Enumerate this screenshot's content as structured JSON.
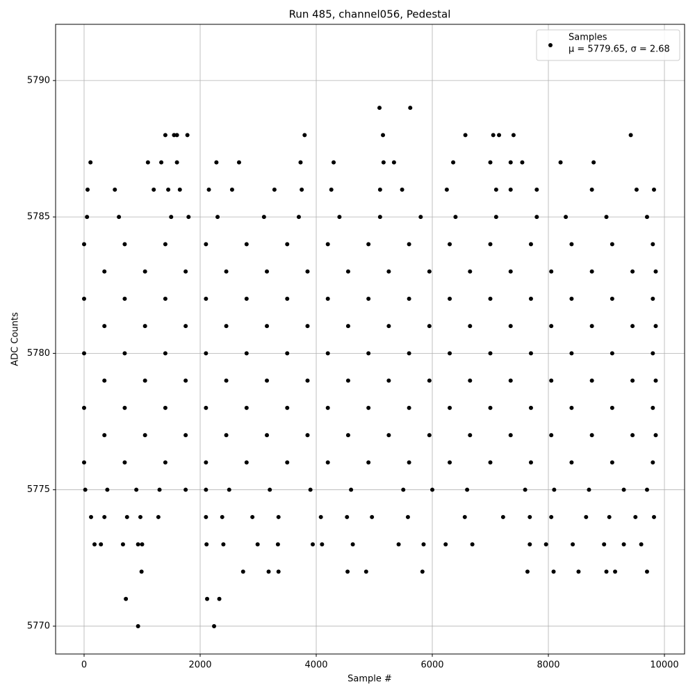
{
  "chart_data": {
    "type": "scatter",
    "title": "Run 485, channel056, Pedestal",
    "x_label": "Sample #",
    "y_label": "ADC Counts",
    "annotation": "μ = 5779.65, σ = 2.68",
    "xlim": [
      -491,
      10347
    ],
    "ylim": [
      5768.98,
      5792.06
    ],
    "xticks": [
      0,
      2000,
      4000,
      6000,
      8000,
      10000
    ],
    "yticks": [
      5770,
      5775,
      5780,
      5785,
      5790
    ],
    "grid": true,
    "legend": "upper right",
    "series": [
      {
        "name": "Samples",
        "color": "#000000",
        "x": [
          0,
          700,
          1400,
          2100,
          2800,
          3500,
          4200,
          4900,
          5600,
          6300,
          7000,
          7700,
          8400,
          9100,
          9800,
          0,
          700,
          1400,
          2100,
          2800,
          3500,
          4200,
          4900,
          5600,
          6300,
          7000,
          7700,
          8400,
          9100,
          9800,
          0,
          700,
          1400,
          2100,
          2800,
          3500,
          4200,
          4900,
          5600,
          6300,
          7000,
          7700,
          8400,
          9100,
          9800,
          0,
          700,
          1400,
          2100,
          2800,
          3500,
          4200,
          4900,
          5600,
          6300,
          7000,
          7700,
          8400,
          9100,
          9800,
          0,
          700,
          1400,
          2100,
          2800,
          3500,
          4200,
          4900,
          5600,
          6300,
          7000,
          7700,
          8400,
          9100,
          9800,
          350,
          1050,
          1750,
          2450,
          3150,
          3850,
          4550,
          5250,
          5950,
          6650,
          7350,
          8050,
          8750,
          9450,
          9850,
          350,
          1050,
          1750,
          2450,
          3150,
          3850,
          4550,
          5250,
          5950,
          6650,
          7350,
          8050,
          8750,
          9450,
          9850,
          350,
          1050,
          1750,
          2450,
          3150,
          3850,
          4550,
          5250,
          5950,
          6650,
          7350,
          8050,
          8750,
          9450,
          9850,
          350,
          1050,
          1750,
          2450,
          3150,
          3850,
          4550,
          5250,
          5950,
          6650,
          7350,
          8050,
          8750,
          9450,
          9850,
          50,
          600,
          1500,
          1800,
          2300,
          3100,
          3700,
          4400,
          5100,
          5800,
          6400,
          7100,
          7800,
          8300,
          9000,
          9700,
          20,
          400,
          900,
          1300,
          1750,
          2100,
          2500,
          3200,
          3900,
          4600,
          5500,
          6000,
          6600,
          7600,
          8100,
          8700,
          9300,
          9700,
          60,
          530,
          1200,
          1450,
          1650,
          2150,
          2550,
          3280,
          3750,
          4260,
          5100,
          5480,
          6250,
          7100,
          7350,
          7800,
          8750,
          9520,
          9820,
          120,
          350,
          740,
          970,
          1280,
          2100,
          2380,
          2900,
          3350,
          4080,
          4530,
          4960,
          5580,
          6560,
          7220,
          7680,
          8050,
          8650,
          9050,
          9500,
          9820,
          110,
          1100,
          1330,
          1600,
          2280,
          2670,
          3730,
          4300,
          5160,
          5340,
          6360,
          7000,
          7350,
          7550,
          8210,
          8780,
          180,
          290,
          670,
          930,
          1000,
          2110,
          2400,
          2990,
          3340,
          3940,
          4100,
          4630,
          5420,
          5850,
          6230,
          6690,
          7680,
          7960,
          8420,
          8960,
          9300,
          9600,
          990,
          2740,
          3180,
          3350,
          4540,
          4860,
          5830,
          7640,
          8090,
          8520,
          9000,
          9150,
          9700,
          1400,
          1550,
          1600,
          1780,
          3800,
          5150,
          6570,
          7050,
          7150,
          7400,
          9420,
          5090,
          5620,
          720,
          2120,
          2330,
          930,
          2240
        ],
        "values": [
          5776,
          5776,
          5776,
          5776,
          5776,
          5776,
          5776,
          5776,
          5776,
          5776,
          5776,
          5776,
          5776,
          5776,
          5776,
          5778,
          5778,
          5778,
          5778,
          5778,
          5778,
          5778,
          5778,
          5778,
          5778,
          5778,
          5778,
          5778,
          5778,
          5778,
          5780,
          5780,
          5780,
          5780,
          5780,
          5780,
          5780,
          5780,
          5780,
          5780,
          5780,
          5780,
          5780,
          5780,
          5780,
          5782,
          5782,
          5782,
          5782,
          5782,
          5782,
          5782,
          5782,
          5782,
          5782,
          5782,
          5782,
          5782,
          5782,
          5782,
          5784,
          5784,
          5784,
          5784,
          5784,
          5784,
          5784,
          5784,
          5784,
          5784,
          5784,
          5784,
          5784,
          5784,
          5784,
          5777,
          5777,
          5777,
          5777,
          5777,
          5777,
          5777,
          5777,
          5777,
          5777,
          5777,
          5777,
          5777,
          5777,
          5777,
          5779,
          5779,
          5779,
          5779,
          5779,
          5779,
          5779,
          5779,
          5779,
          5779,
          5779,
          5779,
          5779,
          5779,
          5779,
          5781,
          5781,
          5781,
          5781,
          5781,
          5781,
          5781,
          5781,
          5781,
          5781,
          5781,
          5781,
          5781,
          5781,
          5781,
          5783,
          5783,
          5783,
          5783,
          5783,
          5783,
          5783,
          5783,
          5783,
          5783,
          5783,
          5783,
          5783,
          5783,
          5783,
          5785,
          5785,
          5785,
          5785,
          5785,
          5785,
          5785,
          5785,
          5785,
          5785,
          5785,
          5785,
          5785,
          5785,
          5785,
          5785,
          5775,
          5775,
          5775,
          5775,
          5775,
          5775,
          5775,
          5775,
          5775,
          5775,
          5775,
          5775,
          5775,
          5775,
          5775,
          5775,
          5775,
          5775,
          5786,
          5786,
          5786,
          5786,
          5786,
          5786,
          5786,
          5786,
          5786,
          5786,
          5786,
          5786,
          5786,
          5786,
          5786,
          5786,
          5786,
          5786,
          5786,
          5774,
          5774,
          5774,
          5774,
          5774,
          5774,
          5774,
          5774,
          5774,
          5774,
          5774,
          5774,
          5774,
          5774,
          5774,
          5774,
          5774,
          5774,
          5774,
          5774,
          5774,
          5787,
          5787,
          5787,
          5787,
          5787,
          5787,
          5787,
          5787,
          5787,
          5787,
          5787,
          5787,
          5787,
          5787,
          5787,
          5787,
          5773,
          5773,
          5773,
          5773,
          5773,
          5773,
          5773,
          5773,
          5773,
          5773,
          5773,
          5773,
          5773,
          5773,
          5773,
          5773,
          5773,
          5773,
          5773,
          5773,
          5773,
          5773,
          5772,
          5772,
          5772,
          5772,
          5772,
          5772,
          5772,
          5772,
          5772,
          5772,
          5772,
          5772,
          5772,
          5788,
          5788,
          5788,
          5788,
          5788,
          5788,
          5788,
          5788,
          5788,
          5788,
          5788,
          5789,
          5789,
          5771,
          5771,
          5771,
          5770,
          5770
        ]
      }
    ]
  }
}
